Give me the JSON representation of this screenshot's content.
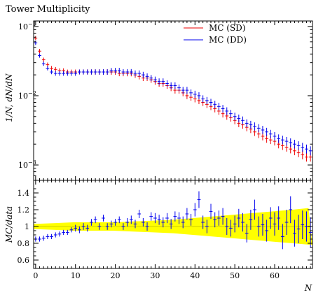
{
  "chart_data": [
    {
      "type": "scatter",
      "title": "Tower Multiplicity",
      "xlabel": "N",
      "ylabel": "1/N, dN/dN",
      "ylabel_main": "1/N",
      "ylabel_sub": "dN/dN",
      "xlim": [
        -0.5,
        69.5
      ],
      "ylim": [
        0.0006,
        0.12
      ],
      "yscale": "log",
      "yticks": [
        0.001,
        0.01,
        0.1
      ],
      "yticklabels": [
        "10",
        "10",
        "10"
      ],
      "yticksups": [
        "−3",
        "−2",
        "−1"
      ],
      "legend_position": "top-right",
      "series": [
        {
          "name": "MC (SD)",
          "color": "#ee0000",
          "x": [
            0,
            1,
            2,
            3,
            4,
            5,
            6,
            7,
            8,
            9,
            10,
            11,
            12,
            13,
            14,
            15,
            16,
            17,
            18,
            19,
            20,
            21,
            22,
            23,
            24,
            25,
            26,
            27,
            28,
            29,
            30,
            31,
            32,
            33,
            34,
            35,
            36,
            37,
            38,
            39,
            40,
            41,
            42,
            43,
            44,
            45,
            46,
            47,
            48,
            49,
            50,
            51,
            52,
            53,
            54,
            55,
            56,
            57,
            58,
            59,
            60,
            61,
            62,
            63,
            64,
            65,
            66,
            67,
            68,
            69
          ],
          "y": [
            0.068,
            0.044,
            0.033,
            0.028,
            0.025,
            0.024,
            0.023,
            0.023,
            0.022,
            0.022,
            0.022,
            0.022,
            0.022,
            0.022,
            0.022,
            0.022,
            0.022,
            0.022,
            0.022,
            0.022,
            0.022,
            0.021,
            0.021,
            0.021,
            0.021,
            0.02,
            0.019,
            0.018,
            0.018,
            0.017,
            0.016,
            0.015,
            0.015,
            0.014,
            0.013,
            0.012,
            0.012,
            0.011,
            0.01,
            0.0095,
            0.009,
            0.0085,
            0.008,
            0.0075,
            0.007,
            0.0065,
            0.006,
            0.0055,
            0.0051,
            0.0048,
            0.0044,
            0.004,
            0.0038,
            0.0035,
            0.0033,
            0.003,
            0.0028,
            0.0026,
            0.0024,
            0.0023,
            0.0022,
            0.002,
            0.0019,
            0.0018,
            0.0017,
            0.0016,
            0.0015,
            0.0014,
            0.0013,
            0.0013
          ]
        },
        {
          "name": "MC (DD)",
          "color": "#0000ee",
          "x": [
            0,
            1,
            2,
            3,
            4,
            5,
            6,
            7,
            8,
            9,
            10,
            11,
            12,
            13,
            14,
            15,
            16,
            17,
            18,
            19,
            20,
            21,
            22,
            23,
            24,
            25,
            26,
            27,
            28,
            29,
            30,
            31,
            32,
            33,
            34,
            35,
            36,
            37,
            38,
            39,
            40,
            41,
            42,
            43,
            44,
            45,
            46,
            47,
            48,
            49,
            50,
            51,
            52,
            53,
            54,
            55,
            56,
            57,
            58,
            59,
            60,
            61,
            62,
            63,
            64,
            65,
            66,
            67,
            68,
            69
          ],
          "y": [
            0.058,
            0.038,
            0.029,
            0.025,
            0.022,
            0.021,
            0.021,
            0.021,
            0.021,
            0.021,
            0.021,
            0.022,
            0.022,
            0.022,
            0.022,
            0.022,
            0.022,
            0.022,
            0.022,
            0.023,
            0.023,
            0.023,
            0.022,
            0.022,
            0.022,
            0.021,
            0.021,
            0.02,
            0.019,
            0.018,
            0.017,
            0.016,
            0.016,
            0.015,
            0.014,
            0.014,
            0.013,
            0.012,
            0.012,
            0.011,
            0.0105,
            0.01,
            0.009,
            0.0085,
            0.008,
            0.0075,
            0.007,
            0.0065,
            0.006,
            0.0055,
            0.005,
            0.0047,
            0.0044,
            0.004,
            0.0038,
            0.0036,
            0.0034,
            0.0032,
            0.003,
            0.0028,
            0.0026,
            0.0024,
            0.0023,
            0.0022,
            0.0021,
            0.002,
            0.0019,
            0.0018,
            0.0017,
            0.0016
          ]
        }
      ]
    },
    {
      "type": "scatter",
      "title": "",
      "xlabel": "N",
      "ylabel": "MC/data",
      "xlim": [
        -0.5,
        69.5
      ],
      "ylim": [
        0.5,
        1.55
      ],
      "xticks": [
        0,
        10,
        20,
        30,
        40,
        50,
        60
      ],
      "xticklabels": [
        "0",
        "10",
        "20",
        "30",
        "40",
        "50",
        "60"
      ],
      "yticks": [
        0.6,
        0.8,
        1.0,
        1.2,
        1.4
      ],
      "yticklabels": [
        "0.6",
        "0.8",
        "1",
        "1.2",
        "1.4"
      ],
      "band_color": "#ffff00",
      "reference_color": "#cccc00",
      "band": {
        "x": [
          0,
          5,
          10,
          15,
          20,
          25,
          30,
          35,
          40,
          45,
          50,
          55,
          60,
          65,
          69
        ],
        "lower": [
          0.97,
          0.96,
          0.95,
          0.95,
          0.95,
          0.94,
          0.93,
          0.92,
          0.9,
          0.88,
          0.86,
          0.84,
          0.82,
          0.8,
          0.78
        ],
        "upper": [
          1.03,
          1.04,
          1.05,
          1.05,
          1.05,
          1.06,
          1.07,
          1.08,
          1.1,
          1.12,
          1.14,
          1.16,
          1.18,
          1.2,
          1.22
        ]
      },
      "series": [
        {
          "name": "MC (DD)",
          "color": "#0000ee",
          "x": [
            0,
            1,
            2,
            3,
            4,
            5,
            6,
            7,
            8,
            9,
            10,
            11,
            12,
            13,
            14,
            15,
            16,
            17,
            18,
            19,
            20,
            21,
            22,
            23,
            24,
            25,
            26,
            27,
            28,
            29,
            30,
            31,
            32,
            33,
            34,
            35,
            36,
            37,
            38,
            39,
            40,
            41,
            42,
            43,
            44,
            45,
            46,
            47,
            48,
            49,
            50,
            51,
            52,
            53,
            54,
            55,
            56,
            57,
            58,
            59,
            60,
            61,
            62,
            63,
            64,
            65,
            66,
            67,
            68,
            69
          ],
          "y": [
            0.85,
            0.85,
            0.86,
            0.88,
            0.88,
            0.9,
            0.91,
            0.93,
            0.93,
            0.96,
            0.98,
            0.96,
            1.0,
            0.98,
            1.05,
            1.08,
            1.0,
            1.1,
            1.0,
            1.03,
            1.05,
            1.08,
            1.0,
            1.05,
            1.08,
            1.03,
            1.15,
            1.05,
            1.0,
            1.12,
            1.1,
            1.08,
            1.05,
            1.1,
            1.03,
            1.12,
            1.1,
            1.05,
            1.15,
            1.08,
            1.2,
            1.32,
            1.05,
            1.0,
            1.18,
            1.08,
            1.1,
            1.12,
            1.0,
            0.98,
            1.03,
            1.1,
            1.05,
            0.92,
            1.08,
            1.2,
            1.0,
            1.02,
            0.95,
            1.1,
            1.03,
            1.1,
            0.88,
            1.05,
            1.2,
            0.92,
            0.97,
            1.02,
            1.0,
            0.93
          ],
          "yerr": [
            0.03,
            0.03,
            0.03,
            0.03,
            0.03,
            0.03,
            0.03,
            0.03,
            0.03,
            0.03,
            0.04,
            0.04,
            0.04,
            0.04,
            0.04,
            0.04,
            0.04,
            0.04,
            0.04,
            0.04,
            0.04,
            0.04,
            0.04,
            0.05,
            0.05,
            0.05,
            0.05,
            0.05,
            0.05,
            0.05,
            0.06,
            0.06,
            0.06,
            0.06,
            0.06,
            0.06,
            0.07,
            0.07,
            0.07,
            0.07,
            0.08,
            0.1,
            0.08,
            0.08,
            0.09,
            0.09,
            0.09,
            0.1,
            0.1,
            0.1,
            0.1,
            0.11,
            0.11,
            0.11,
            0.12,
            0.12,
            0.12,
            0.13,
            0.13,
            0.13,
            0.14,
            0.14,
            0.15,
            0.15,
            0.16,
            0.16,
            0.17,
            0.17,
            0.18,
            0.18
          ]
        },
        {
          "name": "MC (SD)",
          "color": "#ee0000",
          "x": [
            0,
            1,
            2,
            3,
            4,
            5,
            6,
            7,
            8,
            9,
            10,
            11,
            12,
            13,
            14,
            15,
            16,
            17,
            18,
            19,
            20,
            21,
            22,
            23,
            24,
            25,
            26,
            27,
            28,
            29,
            30,
            31,
            32,
            33,
            34,
            35,
            36,
            37,
            38,
            39,
            40,
            41,
            42,
            43,
            44,
            45,
            46,
            47,
            48,
            49,
            50,
            51,
            52,
            53,
            54,
            55,
            56,
            57,
            58,
            59,
            60,
            61,
            62,
            63,
            64,
            65,
            66,
            67,
            68,
            69
          ],
          "y": [
            0.86,
            0.87,
            0.87,
            0.89,
            0.9,
            0.91,
            0.92,
            0.93,
            0.94,
            0.95,
            0.96,
            0.97,
            0.98,
            0.98,
            0.99,
            0.99,
            1.0,
            1.0,
            1.0,
            1.0,
            1.0,
            1.0,
            1.0,
            1.0,
            1.0,
            1.0,
            1.0,
            1.0,
            1.0,
            1.0,
            1.0,
            1.0,
            1.0,
            1.0,
            1.0,
            1.0,
            1.0,
            1.0,
            1.0,
            1.0,
            1.0,
            1.0,
            1.0,
            1.0,
            1.0,
            1.0,
            1.0,
            1.0,
            1.0,
            1.0,
            1.0,
            1.0,
            1.0,
            1.0,
            1.0,
            1.0,
            1.0,
            1.0,
            1.0,
            1.0,
            1.0,
            1.0,
            1.0,
            1.0,
            1.0,
            1.0,
            1.0,
            1.0,
            1.0,
            1.0
          ],
          "yerr": [
            0.02,
            0.02,
            0.02,
            0.02,
            0.02,
            0.02,
            0.02,
            0.02,
            0.02,
            0.02,
            0.02,
            0.02,
            0.02,
            0.02,
            0.02,
            0.02,
            0.02,
            0.02,
            0.02,
            0.02,
            0.02,
            0.02,
            0.02,
            0.02,
            0.02,
            0.02,
            0.02,
            0.02,
            0.02,
            0.02,
            0.02,
            0.02,
            0.02,
            0.02,
            0.02,
            0.02,
            0.02,
            0.02,
            0.02,
            0.02,
            0.02,
            0.02,
            0.02,
            0.02,
            0.02,
            0.02,
            0.02,
            0.02,
            0.02,
            0.02,
            0.02,
            0.02,
            0.02,
            0.02,
            0.02,
            0.02,
            0.02,
            0.02,
            0.02,
            0.02,
            0.02,
            0.02,
            0.02,
            0.02,
            0.02,
            0.02,
            0.02,
            0.02,
            0.02,
            0.02
          ],
          "visible": false
        }
      ]
    }
  ]
}
